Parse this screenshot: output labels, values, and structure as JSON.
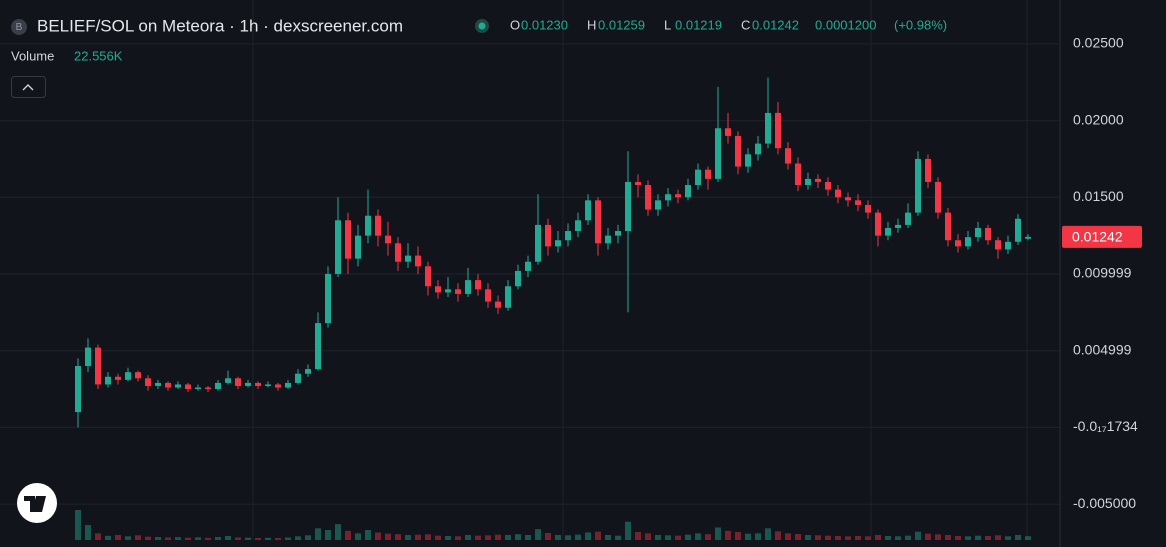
{
  "chart_data": {
    "type": "candlestick",
    "title": "BELIEF/SOL on Meteora · 1h · dexscreener.com",
    "icon_letter": "B",
    "header_labels": [
      "O",
      "H",
      "L",
      "C"
    ],
    "header_values": [
      "0.01230",
      "0.01259",
      "0.01219",
      "0.01242"
    ],
    "change": "0.0001200",
    "change_percent": "(+0.98%)",
    "volume_label": "Volume",
    "volume_value": "22.556K",
    "up_color": "#22ab94",
    "down_color": "#f23645",
    "ylim": [
      -0.00734,
      0.02786
    ],
    "yticks": [
      {
        "value": 0.025,
        "label": "0.02500"
      },
      {
        "value": 0.02,
        "label": "0.02000"
      },
      {
        "value": 0.015,
        "label": "0.01500"
      },
      {
        "value": 0.01,
        "label": "0.009999"
      },
      {
        "value": 0.005,
        "label": "0.004999"
      },
      {
        "value": -1.734e-18,
        "label": "-0.0₁₇1734"
      },
      {
        "value": -0.005,
        "label": "-0.005000"
      }
    ],
    "grid": true,
    "open": [
      0.001,
      0.004,
      0.0052,
      0.0028,
      0.0033,
      0.0031,
      0.0036,
      0.0032,
      0.0027,
      0.0029,
      0.0026,
      0.0028,
      0.0025,
      0.0026,
      0.0025,
      0.0029,
      0.0032,
      0.0027,
      0.0029,
      0.0027,
      0.0028,
      0.0026,
      0.0029,
      0.0035,
      0.0038,
      0.0068,
      0.01,
      0.0135,
      0.011,
      0.0125,
      0.0138,
      0.0125,
      0.012,
      0.0108,
      0.0112,
      0.0105,
      0.0092,
      0.0088,
      0.009,
      0.0087,
      0.0096,
      0.009,
      0.0082,
      0.0078,
      0.0092,
      0.0102,
      0.0108,
      0.0132,
      0.0118,
      0.0122,
      0.0128,
      0.0135,
      0.0148,
      0.012,
      0.0125,
      0.0128,
      0.016,
      0.0158,
      0.0142,
      0.0148,
      0.0152,
      0.015,
      0.0158,
      0.0168,
      0.0162,
      0.0195,
      0.019,
      0.017,
      0.0178,
      0.0185,
      0.0205,
      0.0182,
      0.0172,
      0.0158,
      0.0162,
      0.016,
      0.0155,
      0.015,
      0.0148,
      0.0145,
      0.014,
      0.0125,
      0.013,
      0.0132,
      0.014,
      0.0175,
      0.016,
      0.014,
      0.0122,
      0.0118,
      0.0124,
      0.013,
      0.0122,
      0.0116,
      0.0121,
      0.0123
    ],
    "high": [
      0.0045,
      0.0058,
      0.0054,
      0.0036,
      0.0035,
      0.0039,
      0.0037,
      0.0034,
      0.0031,
      0.003,
      0.003,
      0.0029,
      0.0028,
      0.0027,
      0.0031,
      0.0037,
      0.0033,
      0.0031,
      0.003,
      0.003,
      0.0029,
      0.0031,
      0.0038,
      0.0041,
      0.0075,
      0.0105,
      0.015,
      0.014,
      0.0132,
      0.0155,
      0.0142,
      0.0134,
      0.0124,
      0.012,
      0.0118,
      0.0108,
      0.0096,
      0.0098,
      0.0094,
      0.0104,
      0.01,
      0.0094,
      0.0086,
      0.0096,
      0.0106,
      0.0112,
      0.0152,
      0.0136,
      0.0128,
      0.0133,
      0.014,
      0.0152,
      0.015,
      0.013,
      0.0132,
      0.018,
      0.0165,
      0.0161,
      0.0152,
      0.0156,
      0.0155,
      0.0162,
      0.0172,
      0.017,
      0.0222,
      0.0205,
      0.0193,
      0.0182,
      0.019,
      0.0228,
      0.0212,
      0.0186,
      0.0176,
      0.0166,
      0.0165,
      0.0163,
      0.0158,
      0.0153,
      0.0152,
      0.0148,
      0.0142,
      0.0134,
      0.0136,
      0.0146,
      0.018,
      0.0178,
      0.0163,
      0.0143,
      0.0126,
      0.0128,
      0.0134,
      0.0132,
      0.0124,
      0.0125,
      0.0139,
      0.01259
    ],
    "low": [
      0.0,
      0.0036,
      0.0025,
      0.0026,
      0.0028,
      0.003,
      0.003,
      0.0024,
      0.0025,
      0.0024,
      0.0025,
      0.0023,
      0.0024,
      0.0023,
      0.0024,
      0.0028,
      0.0025,
      0.0026,
      0.0025,
      0.0026,
      0.0024,
      0.0025,
      0.0028,
      0.0033,
      0.0037,
      0.0065,
      0.0098,
      0.01,
      0.0105,
      0.012,
      0.0118,
      0.0112,
      0.0102,
      0.0104,
      0.01,
      0.0086,
      0.0084,
      0.0085,
      0.0082,
      0.0085,
      0.0086,
      0.0078,
      0.0074,
      0.0076,
      0.009,
      0.0098,
      0.0106,
      0.0112,
      0.0114,
      0.0118,
      0.0124,
      0.0132,
      0.0112,
      0.0116,
      0.012,
      0.0075,
      0.015,
      0.0138,
      0.0138,
      0.0144,
      0.0146,
      0.0148,
      0.0155,
      0.0155,
      0.016,
      0.0185,
      0.0165,
      0.0166,
      0.0174,
      0.0182,
      0.0178,
      0.0168,
      0.0154,
      0.0155,
      0.0156,
      0.0151,
      0.0146,
      0.0144,
      0.0141,
      0.0136,
      0.0118,
      0.0122,
      0.0127,
      0.013,
      0.0138,
      0.0156,
      0.0136,
      0.0118,
      0.0114,
      0.0116,
      0.0121,
      0.0119,
      0.011,
      0.0113,
      0.0119,
      0.01219
    ],
    "close": [
      0.004,
      0.0052,
      0.0028,
      0.0033,
      0.0031,
      0.0036,
      0.0032,
      0.0027,
      0.0029,
      0.0026,
      0.0028,
      0.0025,
      0.0026,
      0.0025,
      0.0029,
      0.0032,
      0.0027,
      0.0029,
      0.0027,
      0.0028,
      0.0026,
      0.0029,
      0.0035,
      0.0038,
      0.0068,
      0.01,
      0.0135,
      0.011,
      0.0125,
      0.0138,
      0.0125,
      0.012,
      0.0108,
      0.0112,
      0.0105,
      0.0092,
      0.0088,
      0.009,
      0.0087,
      0.0096,
      0.009,
      0.0082,
      0.0078,
      0.0092,
      0.0102,
      0.0108,
      0.0132,
      0.0118,
      0.0122,
      0.0128,
      0.0135,
      0.0148,
      0.012,
      0.0125,
      0.0128,
      0.016,
      0.0158,
      0.0142,
      0.0148,
      0.0152,
      0.015,
      0.0158,
      0.0168,
      0.0162,
      0.0195,
      0.019,
      0.017,
      0.0178,
      0.0185,
      0.0205,
      0.0182,
      0.0172,
      0.0158,
      0.0162,
      0.016,
      0.0155,
      0.015,
      0.0148,
      0.0145,
      0.014,
      0.0125,
      0.013,
      0.0132,
      0.014,
      0.0175,
      0.016,
      0.014,
      0.0122,
      0.0118,
      0.0124,
      0.013,
      0.0122,
      0.0116,
      0.0121,
      0.0136,
      0.01242
    ],
    "volume": [
      180000,
      90000,
      40000,
      25000,
      30000,
      22000,
      28000,
      20000,
      18000,
      15000,
      17000,
      14000,
      16000,
      13000,
      18000,
      24000,
      15000,
      14000,
      12000,
      13000,
      12000,
      15000,
      22000,
      28000,
      70000,
      60000,
      95000,
      55000,
      40000,
      60000,
      45000,
      38000,
      35000,
      30000,
      32000,
      34000,
      26000,
      24000,
      22000,
      30000,
      26000,
      28000,
      32000,
      30000,
      35000,
      30000,
      65000,
      42000,
      30000,
      28000,
      32000,
      45000,
      50000,
      30000,
      26000,
      110000,
      48000,
      40000,
      30000,
      28000,
      26000,
      32000,
      40000,
      35000,
      75000,
      55000,
      48000,
      38000,
      40000,
      70000,
      52000,
      40000,
      36000,
      30000,
      28000,
      26000,
      24000,
      22000,
      24000,
      22000,
      30000,
      24000,
      22000,
      26000,
      50000,
      38000,
      34000,
      30000,
      24000,
      22000,
      26000,
      24000,
      28000,
      22000,
      30000,
      22556
    ]
  }
}
